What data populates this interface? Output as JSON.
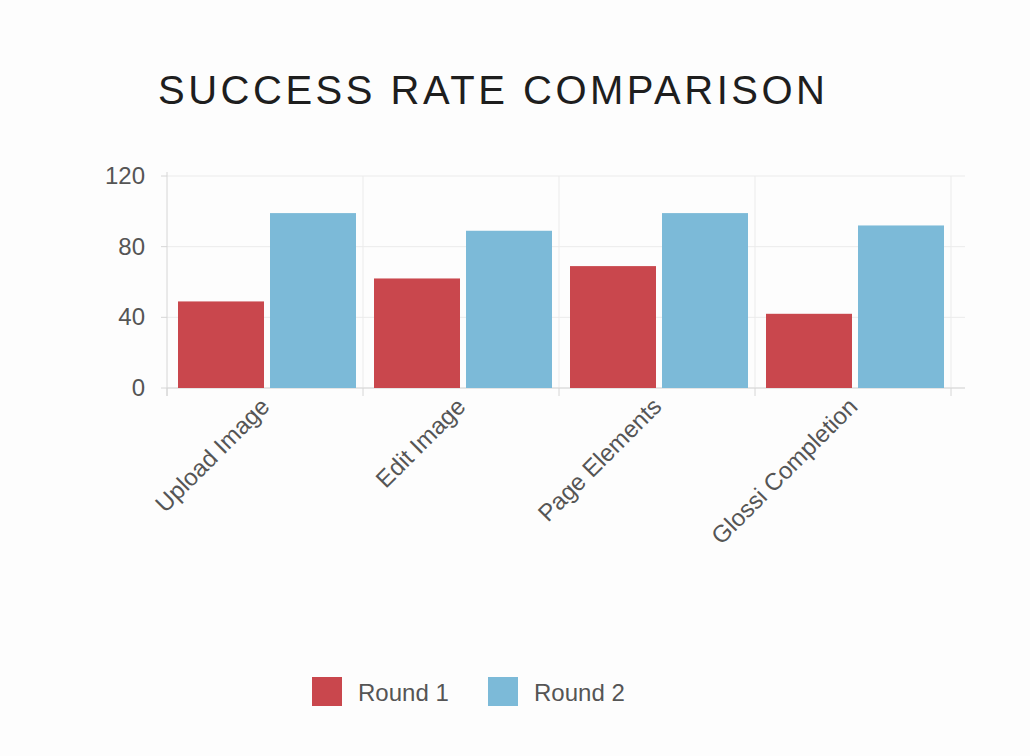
{
  "chart_data": {
    "type": "bar",
    "title": "SUCCESS RATE COMPARISON",
    "categories": [
      "Upload Image",
      "Edit Image",
      "Page Elements",
      "Glossi Completion"
    ],
    "series": [
      {
        "name": "Round 1",
        "color": "#c9474d",
        "values": [
          49,
          62,
          69,
          42
        ]
      },
      {
        "name": "Round 2",
        "color": "#7cbad8",
        "values": [
          99,
          89,
          99,
          92
        ]
      }
    ],
    "ylim": [
      0,
      120
    ],
    "yticks": [
      0,
      40,
      80,
      120
    ],
    "grid": true,
    "legend": "bottom"
  }
}
